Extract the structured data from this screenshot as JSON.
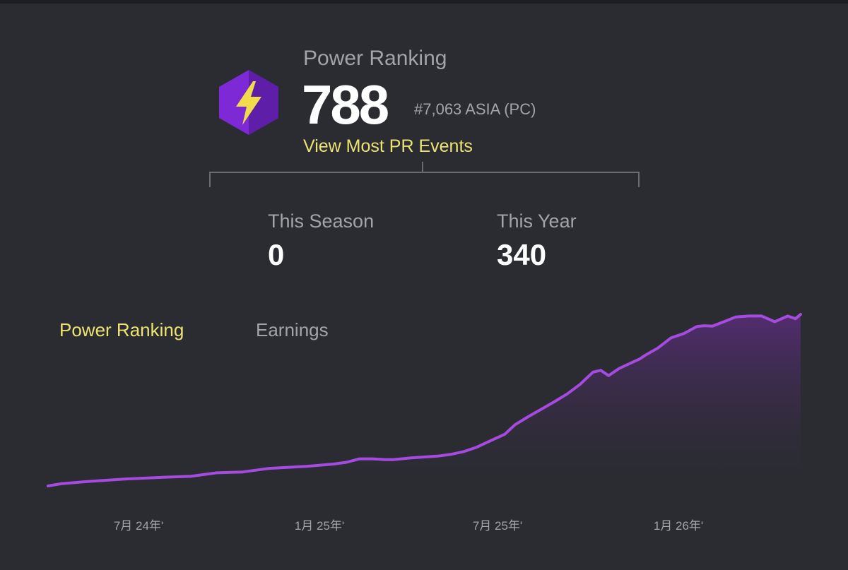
{
  "power_ranking": {
    "title": "Power Ranking",
    "score": "788",
    "rank": "#7,063 ASIA (PC)",
    "view_events_label": "View Most PR Events"
  },
  "stats": {
    "season": {
      "label": "This Season",
      "value": "0"
    },
    "year": {
      "label": "This Year",
      "value": "340"
    }
  },
  "tabs": {
    "power_ranking_label": "Power Ranking",
    "earnings_label": "Earnings"
  },
  "colors": {
    "background": "#2a2c31",
    "accent_yellow": "#ece373",
    "line_purple": "#a64be0",
    "badge_purple": "#7d2ad6"
  },
  "chart_data": {
    "type": "area",
    "x_tick_labels": [
      "7月 24年'",
      "1月 25年'",
      "7月 25年'",
      "1月 26年'"
    ],
    "x": [
      0,
      0.5,
      1.5,
      3,
      4.5,
      5.5,
      6,
      6.5,
      7.5,
      8,
      8.5,
      10,
      11,
      11.5,
      12,
      12.5,
      13,
      13.3,
      14,
      15,
      15.5,
      16,
      16.5,
      17,
      17.3,
      17.6,
      18,
      18.5,
      19,
      19.5,
      20,
      20.5,
      21,
      21.3,
      21.6,
      22,
      22.5,
      22.8,
      23,
      23.5,
      24,
      24.5,
      25,
      25.3,
      25.6,
      26,
      26.5,
      27,
      27.5,
      28,
      28.5,
      28.8,
      29
    ],
    "values": [
      0,
      5,
      10,
      16,
      20,
      22,
      26,
      30,
      32,
      36,
      40,
      45,
      50,
      54,
      62,
      62,
      60,
      60,
      64,
      68,
      72,
      78,
      88,
      102,
      110,
      118,
      140,
      158,
      175,
      192,
      210,
      232,
      260,
      264,
      252,
      268,
      282,
      290,
      298,
      315,
      338,
      348,
      364,
      366,
      365,
      374,
      386,
      388,
      388,
      375,
      388,
      382,
      392
    ],
    "y_min": 0,
    "y_max": 400,
    "grid": false,
    "legend": "none"
  }
}
